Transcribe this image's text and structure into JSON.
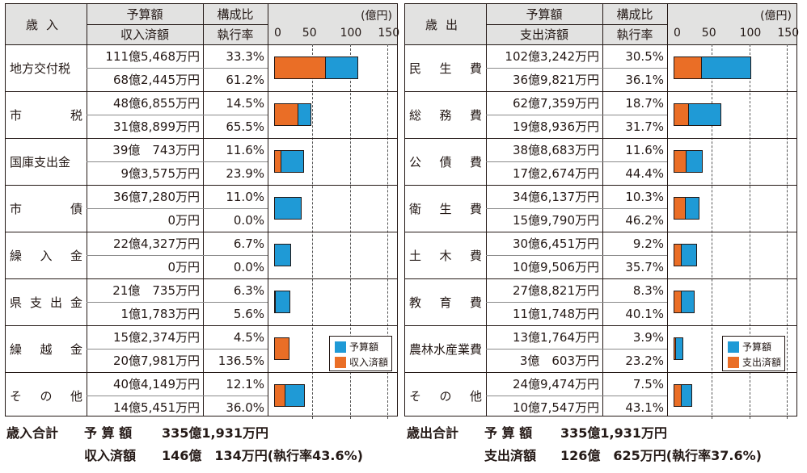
{
  "chart_data": [
    {
      "type": "bar",
      "title": "歳入",
      "columns": {
        "category": "歳入",
        "amount_top": "予算額",
        "amount_bottom": "収入済額",
        "ratio_top": "構成比",
        "ratio_bottom": "執行率"
      },
      "unit": "(億円)",
      "xlim": [
        0,
        150
      ],
      "ticks": [
        "0",
        "50",
        "100",
        "150"
      ],
      "legend": {
        "budget": "予算額",
        "actual": "収入済額",
        "position": "bottom-right"
      },
      "series_names": [
        "予算額",
        "収入済額"
      ],
      "rows": [
        {
          "category": "地方交付税",
          "spread": false,
          "budget_text": "111億5,468万円",
          "share_text": "33.3%",
          "actual_text": "68億2,445万円",
          "rate_text": "61.2%",
          "budget": 111.5,
          "actual": 68.2
        },
        {
          "category": "市税",
          "spread": true,
          "budget_text": "48億6,855万円",
          "share_text": "14.5%",
          "actual_text": "31億8,899万円",
          "rate_text": "65.5%",
          "budget": 48.7,
          "actual": 31.9
        },
        {
          "category": "国庫支出金",
          "spread": false,
          "budget_text": "39億　743万円",
          "share_text": "11.6%",
          "actual_text": "9億3,575万円",
          "rate_text": "23.9%",
          "budget": 39.1,
          "actual": 9.4
        },
        {
          "category": "市債",
          "spread": true,
          "budget_text": "36億7,280万円",
          "share_text": "11.0%",
          "actual_text": "0万円",
          "rate_text": "0.0%",
          "budget": 36.7,
          "actual": 0
        },
        {
          "category": "繰入金",
          "spread": true,
          "budget_text": "22億4,327万円",
          "share_text": "6.7%",
          "actual_text": "0万円",
          "rate_text": "0.0%",
          "budget": 22.4,
          "actual": 0
        },
        {
          "category": "県支出金",
          "spread": true,
          "budget_text": "21億　735万円",
          "share_text": "6.3%",
          "actual_text": "1億1,783万円",
          "rate_text": "5.6%",
          "budget": 21.1,
          "actual": 1.2
        },
        {
          "category": "繰越金",
          "spread": true,
          "budget_text": "15億2,374万円",
          "share_text": "4.5%",
          "actual_text": "20億7,981万円",
          "rate_text": "136.5%",
          "budget": 15.2,
          "actual": 20.8
        },
        {
          "category": "その他",
          "spread": true,
          "budget_text": "40億4,149万円",
          "share_text": "12.1%",
          "actual_text": "14億5,451万円",
          "rate_text": "36.0%",
          "budget": 40.4,
          "actual": 14.5
        }
      ],
      "totals": {
        "label": "歳入合計",
        "budget_label": "予 算 額",
        "budget_value": "335億1,931万円",
        "actual_label": "収入済額",
        "actual_value": "146億　134万円(執行率43.6%)"
      }
    },
    {
      "type": "bar",
      "title": "歳出",
      "columns": {
        "category": "歳出",
        "amount_top": "予算額",
        "amount_bottom": "支出済額",
        "ratio_top": "構成比",
        "ratio_bottom": "執行率"
      },
      "unit": "(億円)",
      "xlim": [
        0,
        150
      ],
      "ticks": [
        "0",
        "50",
        "100",
        "150"
      ],
      "legend": {
        "budget": "予算額",
        "actual": "支出済額",
        "position": "bottom-right"
      },
      "series_names": [
        "予算額",
        "支出済額"
      ],
      "rows": [
        {
          "category": "民生費",
          "spread": true,
          "budget_text": "102億3,242万円",
          "share_text": "30.5%",
          "actual_text": "36億9,821万円",
          "rate_text": "36.1%",
          "budget": 102.3,
          "actual": 37.0
        },
        {
          "category": "総務費",
          "spread": true,
          "budget_text": "62億7,359万円",
          "share_text": "18.7%",
          "actual_text": "19億8,936万円",
          "rate_text": "31.7%",
          "budget": 62.7,
          "actual": 19.9
        },
        {
          "category": "公債費",
          "spread": true,
          "budget_text": "38億8,683万円",
          "share_text": "11.6%",
          "actual_text": "17億2,674万円",
          "rate_text": "44.4%",
          "budget": 38.9,
          "actual": 17.3
        },
        {
          "category": "衛生費",
          "spread": true,
          "budget_text": "34億6,137万円",
          "share_text": "10.3%",
          "actual_text": "15億9,790万円",
          "rate_text": "46.2%",
          "budget": 34.6,
          "actual": 16.0
        },
        {
          "category": "土木費",
          "spread": true,
          "budget_text": "30億6,451万円",
          "share_text": "9.2%",
          "actual_text": "10億9,506万円",
          "rate_text": "35.7%",
          "budget": 30.6,
          "actual": 11.0
        },
        {
          "category": "教育費",
          "spread": true,
          "budget_text": "27億8,821万円",
          "share_text": "8.3%",
          "actual_text": "11億1,748万円",
          "rate_text": "40.1%",
          "budget": 27.9,
          "actual": 11.2
        },
        {
          "category": "農林水産業費",
          "spread": false,
          "budget_text": "13億1,764万円",
          "share_text": "3.9%",
          "actual_text": "3億　603万円",
          "rate_text": "23.2%",
          "budget": 13.2,
          "actual": 3.1
        },
        {
          "category": "その他",
          "spread": true,
          "budget_text": "24億9,474万円",
          "share_text": "7.5%",
          "actual_text": "10億7,547万円",
          "rate_text": "43.1%",
          "budget": 24.9,
          "actual": 10.8
        }
      ],
      "totals": {
        "label": "歳出合計",
        "budget_label": "予 算 額",
        "budget_value": "335億1,931万円",
        "actual_label": "支出済額",
        "actual_value": "126億　625万円(執行率37.6%)"
      }
    }
  ],
  "colors": {
    "budget": "#1f9ad6",
    "actual": "#ea6e26",
    "header_bg": "#e2e2e1"
  }
}
